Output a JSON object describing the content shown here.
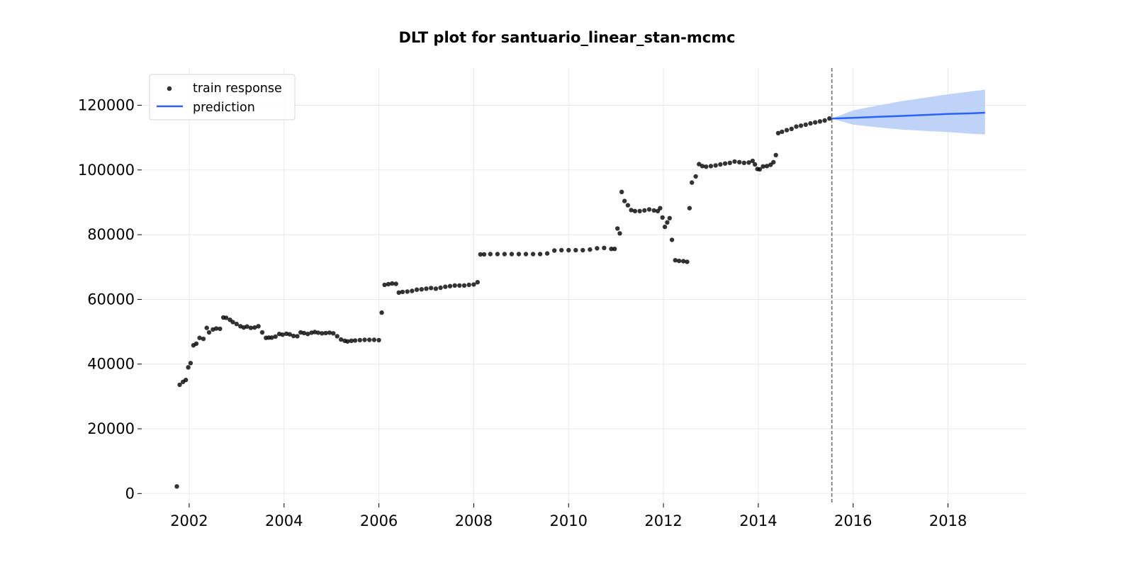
{
  "chart_data": {
    "type": "scatter",
    "title": "DLT plot for santuario_linear_stan-mcmc",
    "xlabel": "",
    "ylabel": "",
    "xlim": [
      2001.0,
      2019.65
    ],
    "ylim": [
      -3000,
      131500
    ],
    "x_ticks": [
      2002,
      2004,
      2006,
      2008,
      2010,
      2012,
      2014,
      2016,
      2018
    ],
    "x_tick_labels": [
      "2002",
      "2004",
      "2006",
      "2008",
      "2010",
      "2012",
      "2014",
      "2016",
      "2018"
    ],
    "y_ticks": [
      0,
      20000,
      40000,
      60000,
      80000,
      100000,
      120000
    ],
    "y_tick_labels": [
      "0",
      "20000",
      "40000",
      "60000",
      "80000",
      "100000",
      "120000"
    ],
    "grid": true,
    "legend_position": "top-left",
    "legend": [
      "train response",
      "prediction"
    ],
    "forecast_start": 2015.55,
    "series": [
      {
        "name": "train response",
        "type": "scatter",
        "color": "#000000",
        "x": [
          2001.74,
          2001.8,
          2001.87,
          2001.93,
          2001.98,
          2002.03,
          2002.09,
          2002.15,
          2002.22,
          2002.3,
          2002.37,
          2002.42,
          2002.5,
          2002.57,
          2002.65,
          2002.72,
          2002.78,
          2002.86,
          2002.92,
          2003.0,
          2003.08,
          2003.15,
          2003.22,
          2003.3,
          2003.38,
          2003.46,
          2003.54,
          2003.62,
          2003.68,
          2003.74,
          2003.82,
          2003.9,
          2003.97,
          2004.05,
          2004.12,
          2004.2,
          2004.28,
          2004.35,
          2004.42,
          2004.5,
          2004.58,
          2004.65,
          2004.72,
          2004.8,
          2004.88,
          2004.96,
          2005.04,
          2005.12,
          2005.2,
          2005.28,
          2005.34,
          2005.42,
          2005.5,
          2005.6,
          2005.7,
          2005.8,
          2005.9,
          2006.0,
          2006.06,
          2006.12,
          2006.2,
          2006.28,
          2006.36,
          2006.42,
          2006.5,
          2006.6,
          2006.7,
          2006.8,
          2006.9,
          2007.0,
          2007.1,
          2007.2,
          2007.3,
          2007.4,
          2007.5,
          2007.6,
          2007.7,
          2007.8,
          2007.9,
          2008.0,
          2008.08,
          2008.14,
          2008.22,
          2008.35,
          2008.5,
          2008.65,
          2008.8,
          2008.95,
          2009.1,
          2009.25,
          2009.4,
          2009.55,
          2009.7,
          2009.85,
          2010.0,
          2010.15,
          2010.3,
          2010.45,
          2010.6,
          2010.75,
          2010.9,
          2010.97,
          2011.03,
          2011.08,
          2011.12,
          2011.18,
          2011.25,
          2011.32,
          2011.4,
          2011.5,
          2011.6,
          2011.7,
          2011.8,
          2011.88,
          2011.93,
          2011.98,
          2012.03,
          2012.08,
          2012.13,
          2012.18,
          2012.25,
          2012.33,
          2012.42,
          2012.5,
          2012.55,
          2012.6,
          2012.68,
          2012.75,
          2012.82,
          2012.9,
          2013.0,
          2013.1,
          2013.2,
          2013.3,
          2013.4,
          2013.5,
          2013.6,
          2013.7,
          2013.8,
          2013.88,
          2013.93,
          2013.98,
          2014.03,
          2014.1,
          2014.18,
          2014.26,
          2014.32,
          2014.37,
          2014.42,
          2014.5,
          2014.6,
          2014.7,
          2014.8,
          2014.9,
          2015.0,
          2015.1,
          2015.2,
          2015.3,
          2015.4,
          2015.5
        ],
        "y": [
          2200,
          33600,
          34500,
          35100,
          39000,
          40300,
          45800,
          46300,
          48100,
          47800,
          51200,
          49800,
          50700,
          51000,
          50900,
          54400,
          54300,
          53700,
          53000,
          52400,
          51700,
          51300,
          51600,
          51200,
          51300,
          51700,
          49800,
          48100,
          48200,
          48200,
          48500,
          49300,
          49100,
          49400,
          49200,
          48700,
          48600,
          49800,
          49600,
          49300,
          49700,
          49900,
          49700,
          49500,
          49600,
          49700,
          49500,
          48600,
          47600,
          47200,
          47000,
          47200,
          47300,
          47400,
          47500,
          47500,
          47500,
          47400,
          55900,
          64500,
          64700,
          64900,
          64800,
          62100,
          62300,
          62400,
          62600,
          63000,
          63100,
          63300,
          63500,
          63300,
          63600,
          63900,
          64100,
          64300,
          64300,
          64300,
          64500,
          64600,
          65300,
          73900,
          73900,
          74000,
          74000,
          74000,
          74000,
          74000,
          74000,
          74000,
          74000,
          74200,
          75100,
          75200,
          75200,
          75200,
          75200,
          75400,
          75800,
          75900,
          75600,
          75600,
          81900,
          80400,
          93200,
          90400,
          89100,
          87600,
          87300,
          87300,
          87500,
          87800,
          87500,
          87300,
          88200,
          85300,
          82400,
          83800,
          85100,
          78400,
          72100,
          71900,
          71800,
          71600,
          88200,
          96100,
          98000,
          101800,
          101200,
          101000,
          101200,
          101400,
          101700,
          102000,
          102200,
          102600,
          102400,
          102200,
          102300,
          102800,
          101700,
          100300,
          100200,
          101100,
          101200,
          101600,
          102400,
          104600,
          111400,
          111800,
          112300,
          112700,
          113400,
          113700,
          114000,
          114400,
          114700,
          115000,
          115300,
          115900
        ]
      },
      {
        "name": "prediction",
        "type": "line",
        "color": "#2962ff",
        "x": [
          2015.55,
          2016.0,
          2016.5,
          2017.0,
          2017.5,
          2018.0,
          2018.5,
          2018.78
        ],
        "y": [
          115900,
          116100,
          116400,
          116700,
          117000,
          117300,
          117500,
          117700
        ],
        "band_color": "#bcd0f7",
        "lower": [
          115900,
          114000,
          113200,
          112500,
          112100,
          111700,
          111200,
          111000
        ],
        "upper": [
          115900,
          118400,
          119900,
          121200,
          122300,
          123400,
          124300,
          124800
        ]
      }
    ]
  }
}
